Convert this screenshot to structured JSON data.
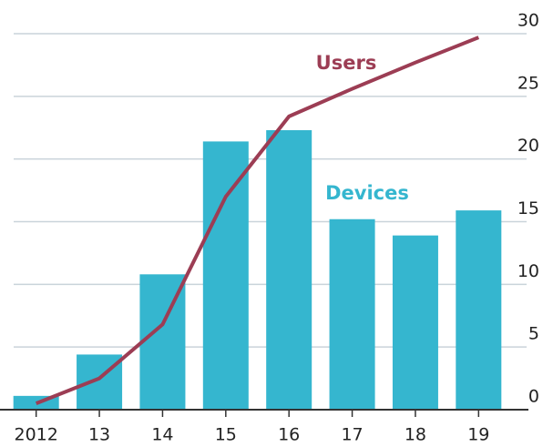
{
  "chart_data": {
    "type": "bar-line",
    "categories": [
      "2012",
      "13",
      "14",
      "15",
      "16",
      "17",
      "18",
      "19"
    ],
    "series": [
      {
        "name": "Devices",
        "type": "bar",
        "color": "#35b6cf",
        "values": [
          1.1,
          4.4,
          10.8,
          21.4,
          22.3,
          15.2,
          13.9,
          15.9
        ]
      },
      {
        "name": "Users",
        "type": "line",
        "color": "#9c3d54",
        "values": [
          0.5,
          2.5,
          6.8,
          17,
          23.4,
          25.6,
          27.7,
          29.7
        ]
      }
    ],
    "ylim": [
      0,
      30
    ],
    "yticks": [
      0,
      5,
      10,
      15,
      20,
      25,
      30
    ],
    "grid": true,
    "y_axis_side": "right"
  }
}
